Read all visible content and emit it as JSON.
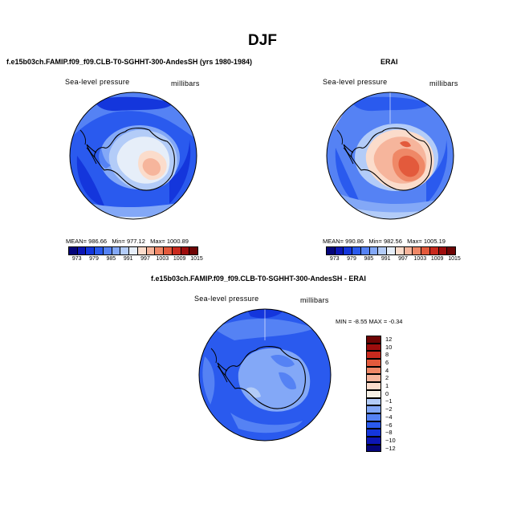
{
  "figure": {
    "title": "DJF",
    "variable": "Sea-level pressure",
    "units": "millibars"
  },
  "panels": {
    "model": {
      "title": "f.e15b03ch.FAMIP.f09_f09.CLB-T0-SGHHT-300-AndesSH (yrs 1980-1984)",
      "mean_label": "MEAN=",
      "mean": "986.66",
      "min_label": "Min=",
      "min": "977.12",
      "max_label": "Max=",
      "max": "1000.89"
    },
    "erai": {
      "title": "ERAI",
      "mean_label": "MEAN=",
      "mean": "990.86",
      "min_label": "Min=",
      "min": "982.56",
      "max_label": "Max=",
      "max": "1005.19"
    },
    "diff": {
      "title": "f.e15b03ch.FAMIP.f09_f09.CLB-T0-SGHHT-300-AndesSH - ERAI",
      "min_label": "MIN =",
      "min": "-8.55",
      "max_label": "MAX =",
      "max": "-0.34"
    }
  },
  "colors": {
    "abs_scale": [
      "#05057a",
      "#0c16b4",
      "#1436dc",
      "#2a5aee",
      "#5582f4",
      "#83a8f7",
      "#b3ccf8",
      "#e6eef9",
      "#fbdccb",
      "#f6b59c",
      "#ef8867",
      "#e35a3c",
      "#c92a1e",
      "#9e0d0d",
      "#6e0404"
    ],
    "diff_scale": [
      "#05057a",
      "#0c16b4",
      "#1436dc",
      "#2a5aee",
      "#5582f4",
      "#83a8f7",
      "#b3ccf8",
      "#f6f0e6",
      "#fbdccb",
      "#f6b59c",
      "#ef8867",
      "#e35a3c",
      "#c92a1e",
      "#9e0d0d",
      "#6e0404"
    ],
    "antarctica_model": "#e6eef9",
    "antarctica_erai": "#f6b59c"
  },
  "chart_data": [
    {
      "type": "heatmap",
      "name": "model sea-level pressure",
      "projection": "south polar stereographic",
      "levels": [
        973,
        976,
        979,
        982,
        985,
        988,
        991,
        994,
        997,
        1000,
        1003,
        1006,
        1009,
        1012,
        1015
      ],
      "colorbar_tick_labels": [
        "973",
        "979",
        "985",
        "991",
        "997",
        "1003",
        "1009",
        "1015"
      ],
      "stats": {
        "mean": 986.66,
        "min": 977.12,
        "max": 1000.89
      }
    },
    {
      "type": "heatmap",
      "name": "ERAI sea-level pressure",
      "projection": "south polar stereographic",
      "levels": [
        973,
        976,
        979,
        982,
        985,
        988,
        991,
        994,
        997,
        1000,
        1003,
        1006,
        1009,
        1012,
        1015
      ],
      "colorbar_tick_labels": [
        "973",
        "979",
        "985",
        "991",
        "997",
        "1003",
        "1009",
        "1015"
      ],
      "stats": {
        "mean": 990.86,
        "min": 982.56,
        "max": 1005.19
      }
    },
    {
      "type": "heatmap",
      "name": "difference model - ERAI",
      "projection": "south polar stereographic",
      "levels": [
        -12,
        -10,
        -8,
        -6,
        -4,
        -2,
        -1,
        0,
        1,
        2,
        4,
        6,
        8,
        10,
        12
      ],
      "colorbar_tick_labels": [
        "12",
        "10",
        "8",
        "6",
        "4",
        "2",
        "1",
        "0",
        "−1",
        "−2",
        "−4",
        "−6",
        "−8",
        "−10",
        "−12"
      ],
      "stats": {
        "min": -8.55,
        "max": -0.34
      }
    }
  ]
}
